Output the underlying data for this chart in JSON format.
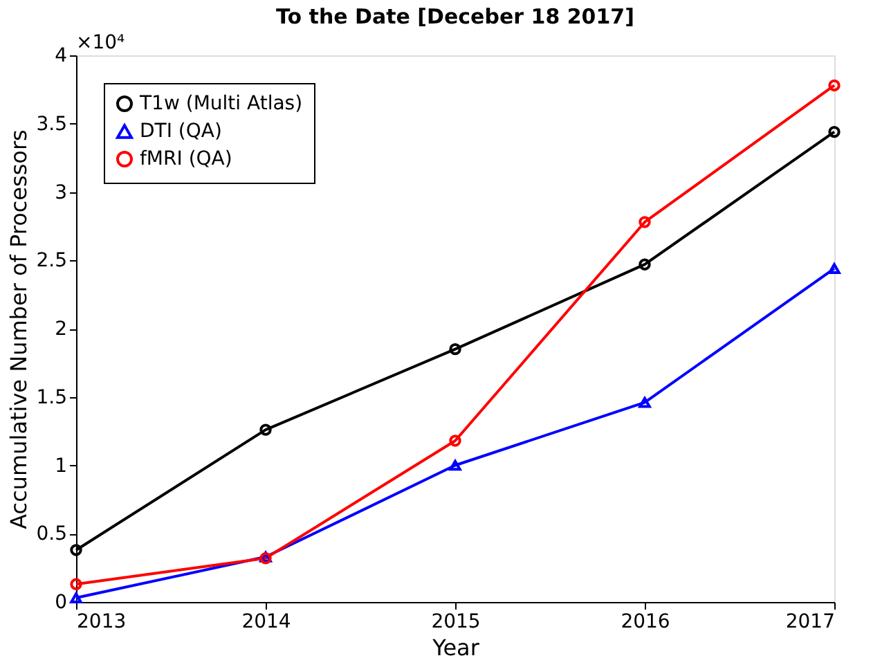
{
  "chart_data": {
    "type": "line",
    "title": "To the Date [Deceber 18 2017]",
    "xlabel": "Year",
    "ylabel": "Accumulative Number of Processors",
    "x": [
      2013,
      2014,
      2015,
      2016,
      2017
    ],
    "series": [
      {
        "name": "T1w (Multi Atlas)",
        "color": "#000000",
        "marker": "circle",
        "values": [
          0.38,
          1.26,
          1.85,
          2.47,
          3.44
        ]
      },
      {
        "name": "DTI (QA)",
        "color": "#0000ff",
        "marker": "triangle",
        "values": [
          0.03,
          0.33,
          1.0,
          1.46,
          2.44
        ]
      },
      {
        "name": "fMRI (QA)",
        "color": "#ff0000",
        "marker": "circle",
        "values": [
          0.13,
          0.32,
          1.18,
          2.78,
          3.78
        ]
      }
    ],
    "xlim": [
      2013,
      2017
    ],
    "xticks": [
      2013,
      2014,
      2015,
      2016,
      2017
    ],
    "ylim": [
      0,
      4
    ],
    "yticks": [
      0,
      0.5,
      1,
      1.5,
      2,
      2.5,
      3,
      3.5,
      4
    ],
    "annotations": [
      "×10⁴"
    ],
    "legend": "top left",
    "grid": false,
    "line_style": "solid"
  }
}
